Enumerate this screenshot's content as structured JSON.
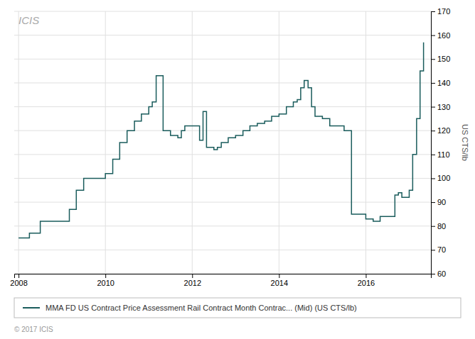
{
  "chart_data": {
    "type": "line",
    "line_style": "step",
    "ylabel": "US CTS/lb",
    "annotations": [
      "ICIS",
      "© 2017 ICIS"
    ],
    "grid": true,
    "legend": "bottom",
    "xlim": [
      2007.9,
      2017.5
    ],
    "xticks": [
      2008,
      2010,
      2012,
      2014,
      2016
    ],
    "ylim": [
      60,
      170
    ],
    "yticks": [
      60,
      70,
      80,
      90,
      100,
      110,
      120,
      130,
      140,
      150,
      160,
      170
    ],
    "x": [
      2008.0,
      2008.25,
      2008.5,
      2008.75,
      2009.0,
      2009.17,
      2009.33,
      2009.5,
      2009.67,
      2009.83,
      2010.0,
      2010.17,
      2010.33,
      2010.5,
      2010.67,
      2010.83,
      2011.0,
      2011.08,
      2011.17,
      2011.33,
      2011.5,
      2011.67,
      2011.75,
      2011.83,
      2012.0,
      2012.17,
      2012.25,
      2012.33,
      2012.5,
      2012.58,
      2012.67,
      2012.83,
      2013.0,
      2013.17,
      2013.33,
      2013.5,
      2013.67,
      2013.83,
      2014.0,
      2014.17,
      2014.33,
      2014.42,
      2014.5,
      2014.58,
      2014.67,
      2014.75,
      2014.83,
      2015.0,
      2015.17,
      2015.5,
      2015.67,
      2016.0,
      2016.17,
      2016.33,
      2016.5,
      2016.67,
      2016.75,
      2016.83,
      2017.0,
      2017.08,
      2017.17,
      2017.25,
      2017.33
    ],
    "series": [
      {
        "name": "MMA FD US Contract Price Assessment Rail Contract Month Contrac... (Mid) (US CTS/lb)",
        "color": "#1a5c5c",
        "values": [
          75,
          77,
          82,
          82,
          82,
          87,
          95,
          100,
          100,
          100,
          102,
          108,
          115,
          120,
          124,
          127,
          130,
          132,
          143,
          120,
          118,
          117,
          120,
          122,
          122,
          116,
          128,
          113,
          112,
          113,
          115,
          117,
          118,
          120,
          122,
          123,
          124,
          126,
          127,
          130,
          132,
          133,
          138,
          141,
          138,
          130,
          126,
          125,
          122,
          120,
          85,
          83,
          82,
          84,
          84,
          93,
          94,
          92,
          95,
          110,
          125,
          145,
          157
        ]
      }
    ]
  }
}
